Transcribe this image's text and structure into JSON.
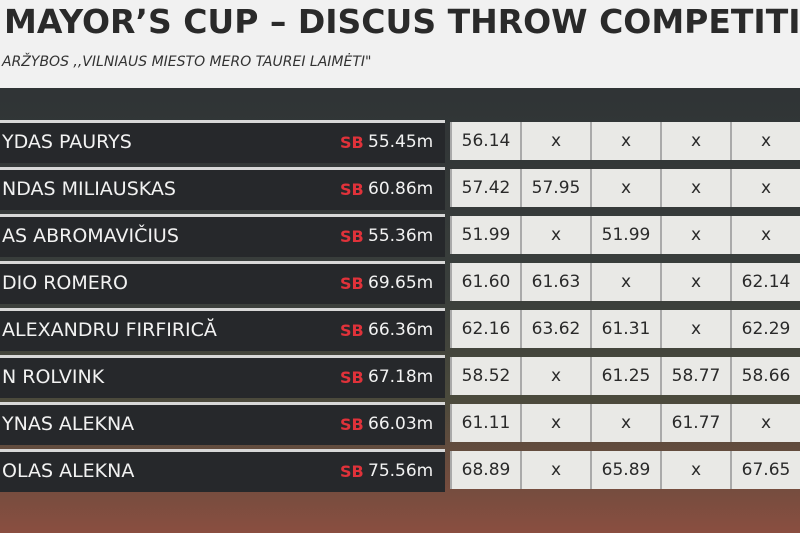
{
  "header": {
    "title": "MAYOR’S CUP – DISCUS THROW COMPETITION",
    "subtitle": "ARŽYBOS ,,VILNIAUS MIESTO MERO TAUREI LAIMĖTI\""
  },
  "table": {
    "rows": [
      {
        "name": "YDAS PAURYS",
        "sb_label": "SB",
        "sb": "55.45m",
        "attempts": [
          "56.14",
          "x",
          "x",
          "x",
          "x"
        ]
      },
      {
        "name": "NDAS MILIAUSKAS",
        "sb_label": "SB",
        "sb": "60.86m",
        "attempts": [
          "57.42",
          "57.95",
          "x",
          "x",
          "x"
        ]
      },
      {
        "name": "AS ABROMAVIČIUS",
        "sb_label": "SB",
        "sb": "55.36m",
        "attempts": [
          "51.99",
          "x",
          "51.99",
          "x",
          "x"
        ]
      },
      {
        "name": "DIO ROMERO",
        "sb_label": "SB",
        "sb": "69.65m",
        "attempts": [
          "61.60",
          "61.63",
          "x",
          "x",
          "62.14"
        ]
      },
      {
        "name": "ALEXANDRU FIRFIRICĂ",
        "sb_label": "SB",
        "sb": "66.36m",
        "attempts": [
          "62.16",
          "63.62",
          "61.31",
          "x",
          "62.29"
        ]
      },
      {
        "name": "N ROLVINK",
        "sb_label": "SB",
        "sb": "67.18m",
        "attempts": [
          "58.52",
          "x",
          "61.25",
          "58.77",
          "58.66"
        ]
      },
      {
        "name": "YNAS ALEKNA",
        "sb_label": "SB",
        "sb": "66.03m",
        "attempts": [
          "61.11",
          "x",
          "x",
          "61.77",
          "x"
        ]
      },
      {
        "name": "OLAS ALEKNA",
        "sb_label": "SB",
        "sb": "75.56m",
        "attempts": [
          "68.89",
          "x",
          "65.89",
          "x",
          "67.65"
        ]
      }
    ]
  }
}
